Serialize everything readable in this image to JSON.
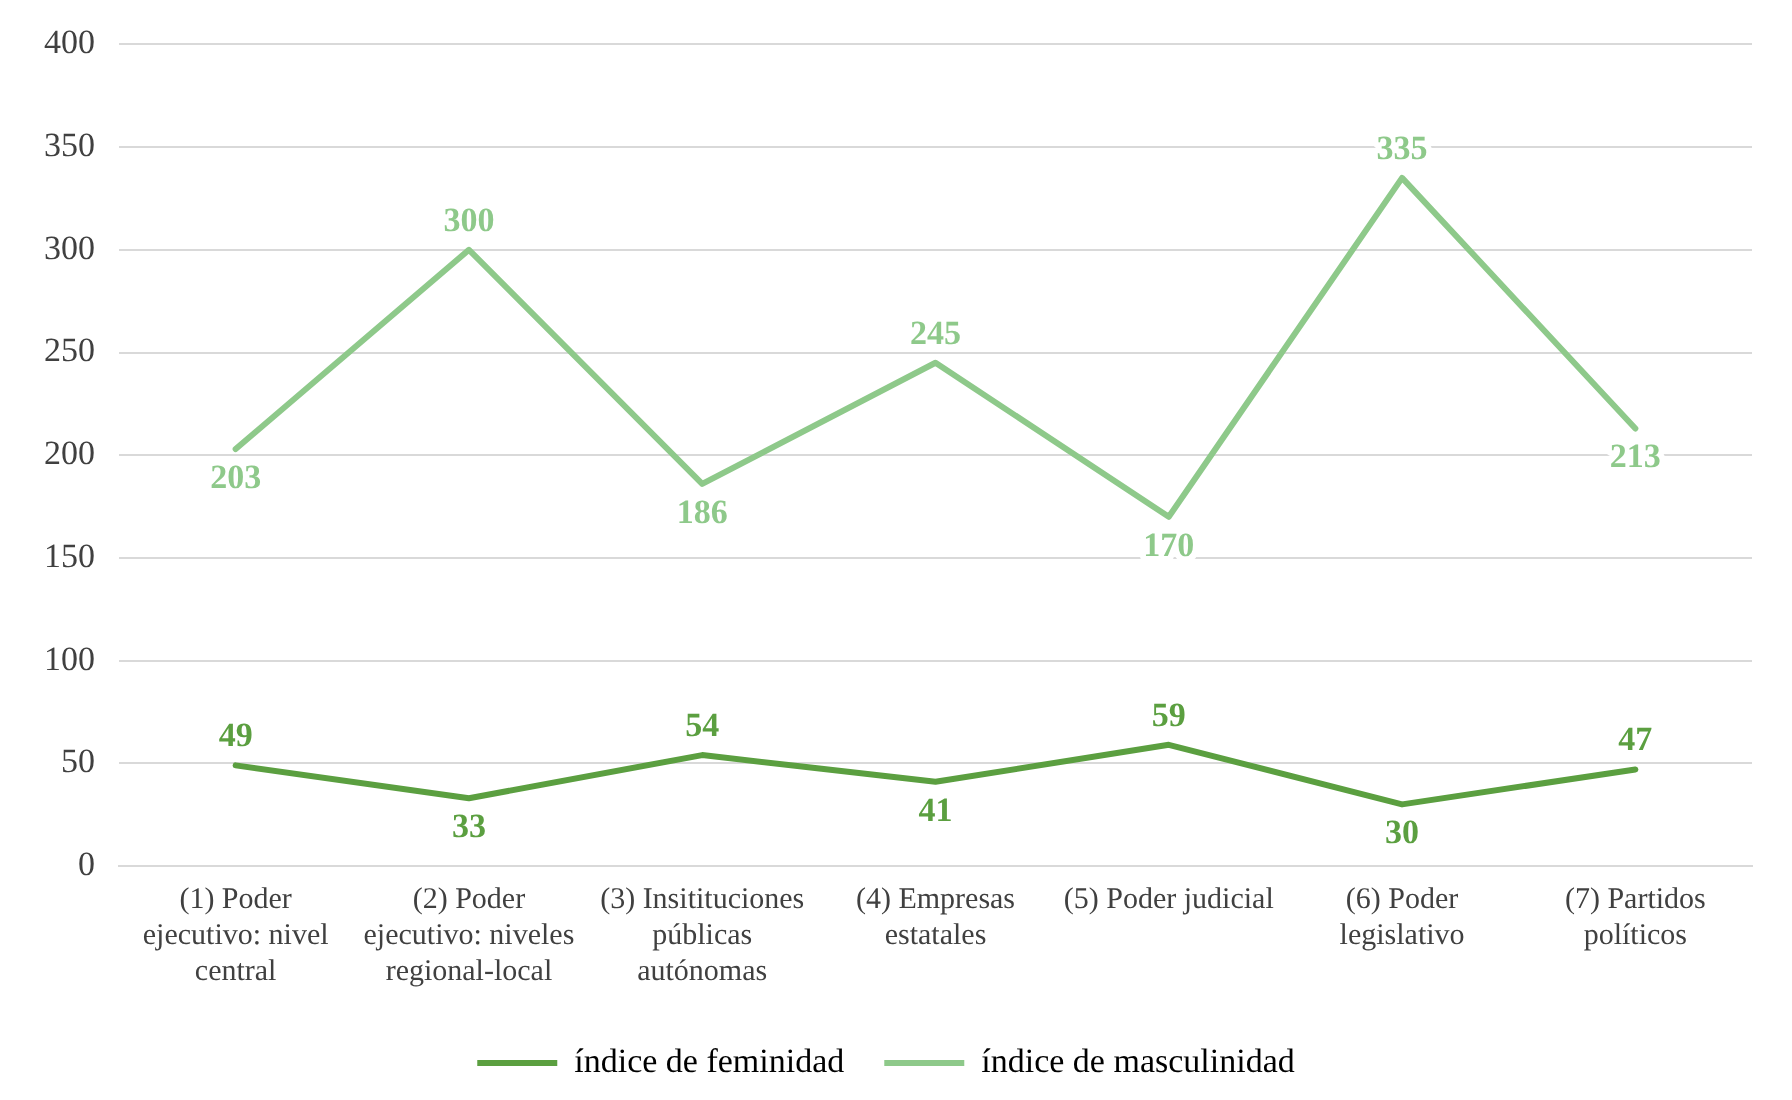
{
  "chart_data": {
    "type": "line",
    "categories": [
      "(1) Poder ejecutivo: nivel central",
      "(2) Poder ejecutivo: niveles regional-local",
      "(3) Insitituciones públicas autónomas",
      "(4) Empresas estatales",
      "(5) Poder judicial",
      "(6) Poder legislativo",
      "(7) Partidos políticos"
    ],
    "series": [
      {
        "name": "índice de feminidad",
        "color": "#5b9f40",
        "values": [
          49,
          33,
          54,
          41,
          59,
          30,
          47
        ]
      },
      {
        "name": "índice de masculinidad",
        "color": "#8ec98a",
        "values": [
          203,
          300,
          186,
          245,
          170,
          335,
          213
        ]
      }
    ],
    "ylim": [
      0,
      400
    ],
    "yticks": [
      0,
      50,
      100,
      150,
      200,
      250,
      300,
      350,
      400
    ],
    "grid": "y",
    "legend": "bottom",
    "line_style": "solid",
    "data_labels": true
  }
}
